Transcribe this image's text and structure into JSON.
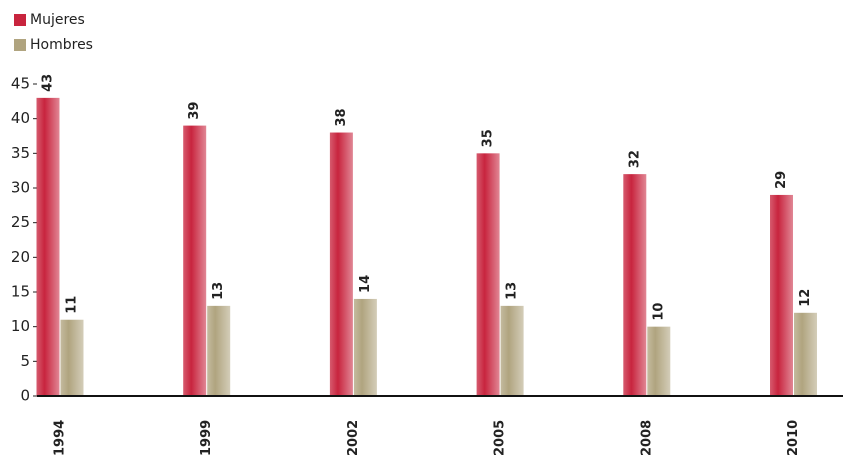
{
  "chart_data": {
    "type": "bar",
    "categories": [
      "1994",
      "1999",
      "2002",
      "2005",
      "2008",
      "2010"
    ],
    "series": [
      {
        "name": "Mujeres",
        "color": "#c8243e",
        "values": [
          43,
          39,
          38,
          35,
          32,
          29
        ]
      },
      {
        "name": "Hombres",
        "color": "#b0a47f",
        "values": [
          11,
          13,
          14,
          13,
          10,
          12
        ]
      }
    ],
    "ylim": [
      0,
      45
    ],
    "yticks": [
      0,
      5,
      10,
      15,
      20,
      25,
      30,
      35,
      40,
      45
    ],
    "legend": "top-left"
  }
}
